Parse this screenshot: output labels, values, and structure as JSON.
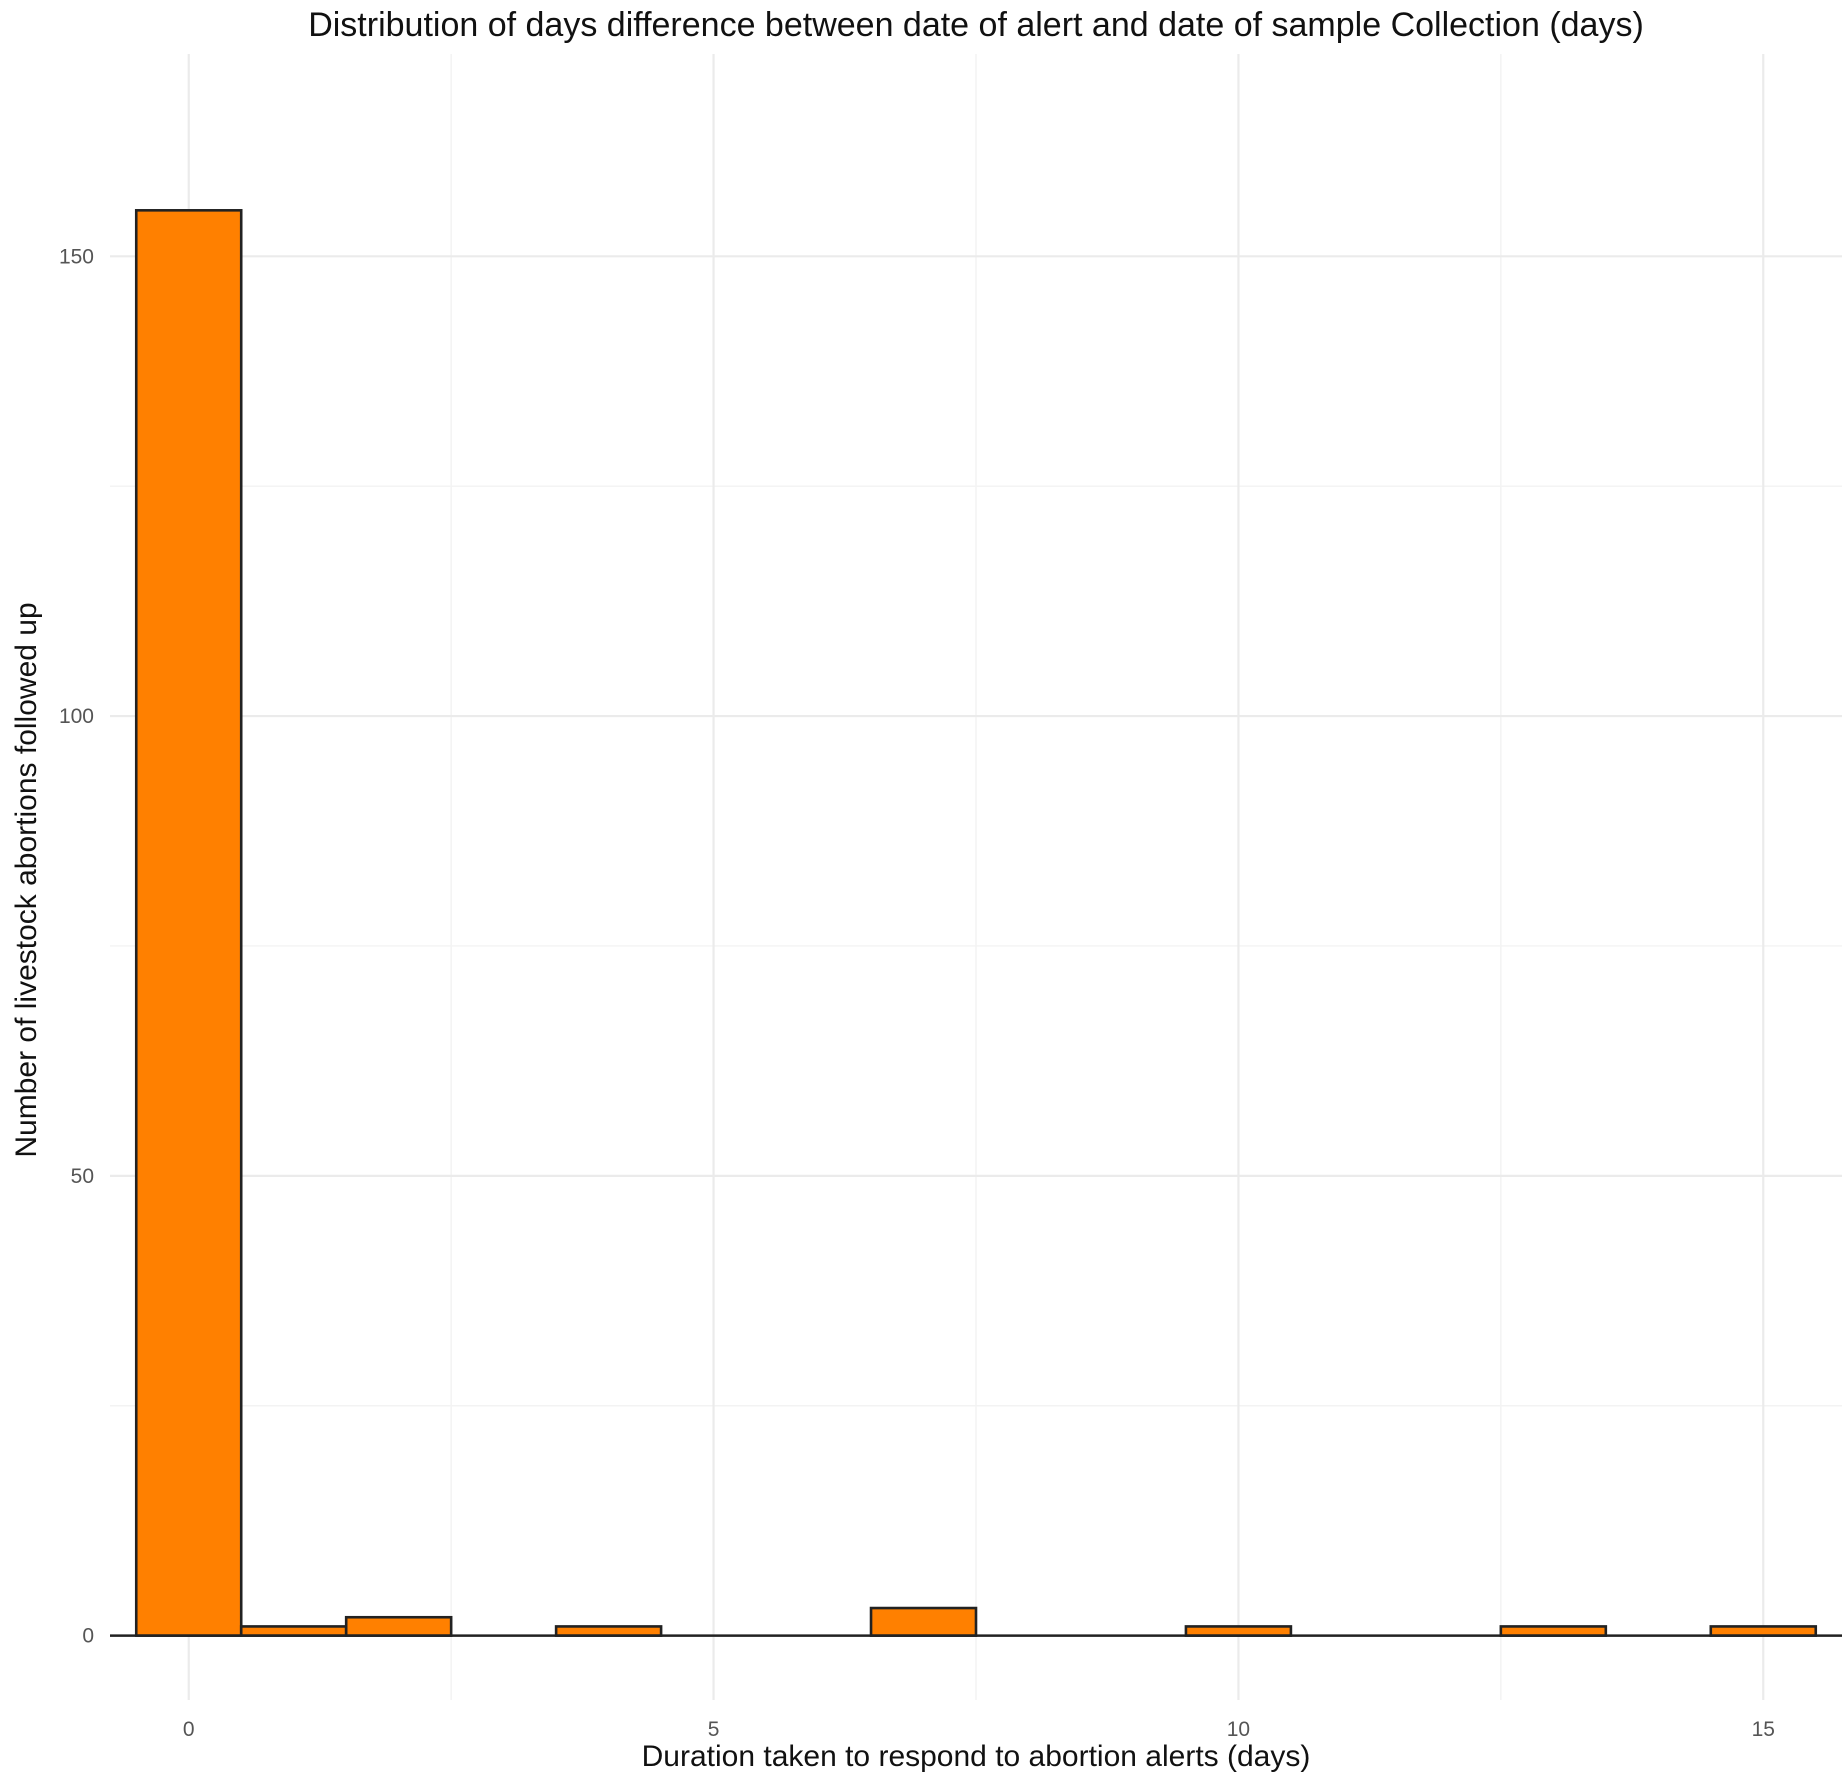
{
  "chart_data": {
    "type": "bar",
    "title": "Distribution of days difference between date of alert and date of sample Collection (days)",
    "xlabel": "Duration taken to respond to abortion alerts (days)",
    "ylabel": "Number of livestock abortions followed up",
    "x_ticks": [
      "0",
      "5",
      "10",
      "15"
    ],
    "y_ticks": [
      "0",
      "50",
      "100",
      "150"
    ],
    "x_tick_values": [
      0,
      5,
      10,
      15
    ],
    "y_tick_values": [
      0,
      50,
      100,
      150
    ],
    "xlim": [
      -0.75,
      15.75
    ],
    "ylim": [
      -7,
      172
    ],
    "grid": true,
    "bar_color": "#ff8000",
    "bins": [
      {
        "from": -0.5,
        "to": 0.5,
        "value": 155
      },
      {
        "from": 0.5,
        "to": 1.5,
        "value": 1
      },
      {
        "from": 1.5,
        "to": 2.5,
        "value": 2
      },
      {
        "from": 2.5,
        "to": 3.5,
        "value": 0
      },
      {
        "from": 3.5,
        "to": 4.5,
        "value": 1
      },
      {
        "from": 4.5,
        "to": 5.5,
        "value": 0
      },
      {
        "from": 5.5,
        "to": 6.5,
        "value": 0
      },
      {
        "from": 6.5,
        "to": 7.5,
        "value": 3
      },
      {
        "from": 7.5,
        "to": 8.5,
        "value": 0
      },
      {
        "from": 8.5,
        "to": 9.5,
        "value": 0
      },
      {
        "from": 9.5,
        "to": 10.5,
        "value": 1
      },
      {
        "from": 10.5,
        "to": 11.5,
        "value": 0
      },
      {
        "from": 11.5,
        "to": 12.5,
        "value": 0
      },
      {
        "from": 12.5,
        "to": 13.5,
        "value": 1
      },
      {
        "from": 13.5,
        "to": 14.5,
        "value": 0
      },
      {
        "from": 14.5,
        "to": 15.5,
        "value": 1
      }
    ]
  }
}
